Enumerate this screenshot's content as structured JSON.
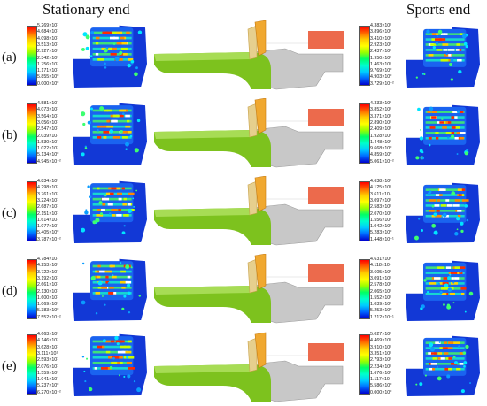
{
  "headers": {
    "left": "Stationary end",
    "right": "Sports end"
  },
  "rows": [
    {
      "label": "(a)",
      "left_scale": [
        "5.269×10¹",
        "4.684×10¹",
        "4.098×10¹",
        "3.513×10¹",
        "2.927×10¹",
        "2.342×10¹",
        "1.756×10¹",
        "1.171×10¹",
        "5.855×10⁰",
        "0.000×10⁰"
      ],
      "right_scale": [
        "4.383×10¹",
        "3.896×10¹",
        "3.410×10¹",
        "2.923×10¹",
        "2.437×10¹",
        "1.950×10¹",
        "1.463×10¹",
        "9.769×10⁰",
        "4.903×10⁰",
        "3.729×10⁻²"
      ]
    },
    {
      "label": "(b)",
      "left_scale": [
        "4.581×10¹",
        "4.073×10¹",
        "3.564×10¹",
        "3.056×10¹",
        "2.547×10¹",
        "2.039×10¹",
        "1.530×10¹",
        "1.022×10¹",
        "5.134×10⁰",
        "4.945×10⁻²"
      ],
      "right_scale": [
        "4.333×10¹",
        "3.852×10¹",
        "3.371×10¹",
        "2.890×10¹",
        "2.409×10¹",
        "1.928×10¹",
        "1.448×10¹",
        "9.668×10⁰",
        "4.859×10⁰",
        "5.061×10⁻²"
      ]
    },
    {
      "label": "(c)",
      "left_scale": [
        "4.834×10¹",
        "4.298×10¹",
        "3.761×10¹",
        "3.224×10¹",
        "2.687×10¹",
        "2.151×10¹",
        "1.614×10¹",
        "1.077×10¹",
        "5.405×10⁰",
        "3.787×10⁻²"
      ],
      "right_scale": [
        "4.638×10¹",
        "4.125×10¹",
        "3.611×10¹",
        "3.097×10¹",
        "2.583×10¹",
        "2.070×10¹",
        "1.556×10¹",
        "1.042×10¹",
        "5.283×10⁰",
        "1.448×10⁻¹"
      ]
    },
    {
      "label": "(d)",
      "left_scale": [
        "4.784×10¹",
        "4.253×10¹",
        "3.722×10¹",
        "3.192×10¹",
        "2.661×10¹",
        "2.130×10¹",
        "1.600×10¹",
        "1.069×10¹",
        "5.383×10⁰",
        "7.552×10⁻²"
      ],
      "right_scale": [
        "4.631×10¹",
        "4.118×10¹",
        "3.605×10¹",
        "3.091×10¹",
        "2.578×10¹",
        "2.065×10¹",
        "1.552×10¹",
        "1.039×10¹",
        "5.253×10⁰",
        "1.212×10⁻¹"
      ]
    },
    {
      "label": "(e)",
      "left_scale": [
        "4.663×10¹",
        "4.146×10¹",
        "3.628×10¹",
        "3.111×10¹",
        "2.593×10¹",
        "2.076×10¹",
        "1.559×10¹",
        "1.041×10¹",
        "5.237×10⁰",
        "6.270×10⁻²"
      ],
      "right_scale": [
        "5.027×10¹",
        "4.469×10¹",
        "3.910×10¹",
        "3.351×10¹",
        "2.793×10¹",
        "2.234×10¹",
        "1.676×10¹",
        "1.117×10¹",
        "5.586×10⁰",
        "0.000×10⁰"
      ]
    }
  ],
  "colors": {
    "contour_scale": [
      "#ff0000",
      "#ff6600",
      "#ffcc00",
      "#ffff00",
      "#99ff00",
      "#00ff66",
      "#00ffcc",
      "#00ccff",
      "#0066ff",
      "#0000cc"
    ],
    "roller": "#7dc21e",
    "block": "#c8c8c8",
    "blade": "#f0a830",
    "blade_back": "#e6cf8e",
    "bar": "#ec6a4c"
  }
}
